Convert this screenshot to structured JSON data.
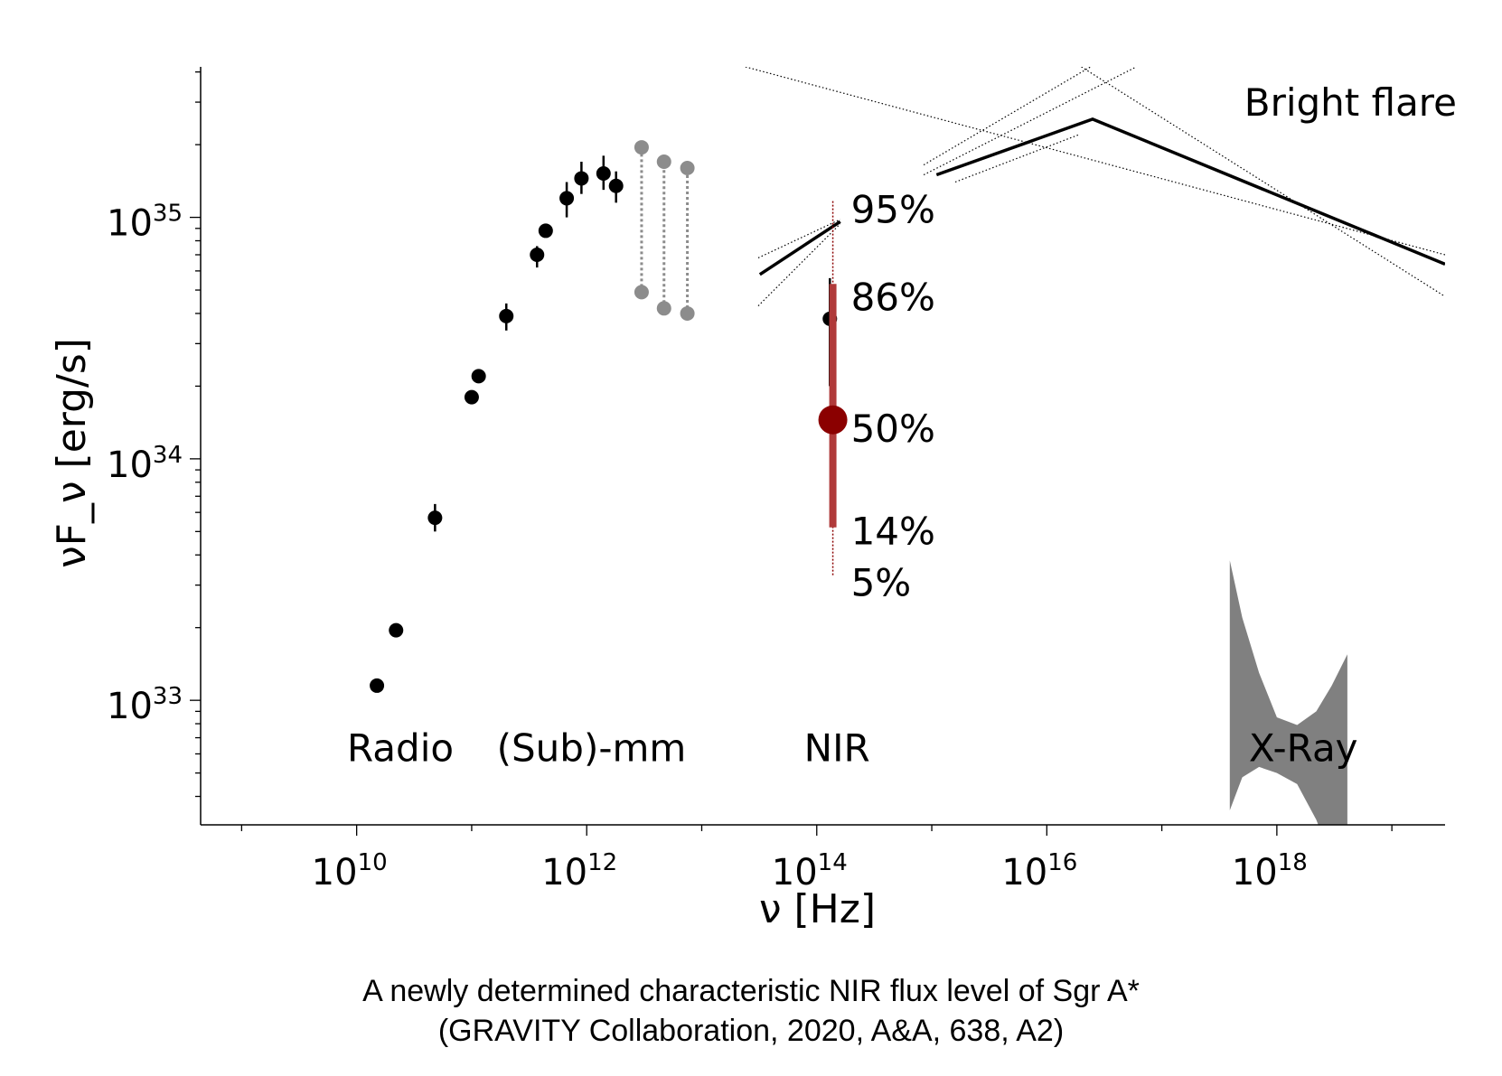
{
  "chart_data": {
    "type": "scatter",
    "title": "",
    "xlabel": "ν [Hz]",
    "ylabel": "νF_ν [erg/s]",
    "xscale": "log",
    "yscale": "log",
    "xlim": [
      440000000.0,
      2.9e+19
    ],
    "ylim": [
      3.05e+32,
      4.2e+35
    ],
    "x_ticks": [
      {
        "value": 10000000000.0,
        "base": "10",
        "exp": "10"
      },
      {
        "value": 1000000000000.0,
        "base": "10",
        "exp": "12"
      },
      {
        "value": 100000000000000.0,
        "base": "10",
        "exp": "14"
      },
      {
        "value": 1e+16,
        "base": "10",
        "exp": "16"
      },
      {
        "value": 1e+18,
        "base": "10",
        "exp": "18"
      }
    ],
    "y_ticks": [
      {
        "value": 1e+33,
        "base": "10",
        "exp": "33"
      },
      {
        "value": 1e+34,
        "base": "10",
        "exp": "34"
      },
      {
        "value": 1e+35,
        "base": "10",
        "exp": "35"
      }
    ],
    "grid": false,
    "band_labels": [
      {
        "text": "Radio",
        "x": 24000000000.0
      },
      {
        "text": "(Sub)-mm",
        "x": 1100000000000.0
      },
      {
        "text": "NIR",
        "x": 150000000000000.0
      },
      {
        "text": "X-Ray",
        "x": 1.7e+18
      }
    ],
    "band_label_y": 5.6e+32,
    "quiescent_points": [
      {
        "x": 15000000000.0,
        "y": 1.15e+33,
        "lo": 1.15e+33,
        "hi": 1.15e+33
      },
      {
        "x": 22000000000.0,
        "y": 1.95e+33,
        "lo": 1.95e+33,
        "hi": 1.95e+33
      },
      {
        "x": 48000000000.0,
        "y": 5.7e+33,
        "lo": 5e+33,
        "hi": 6.5e+33
      },
      {
        "x": 100000000000.0,
        "y": 1.8e+34,
        "lo": 1.75e+34,
        "hi": 1.85e+34
      },
      {
        "x": 115000000000.0,
        "y": 2.2e+34,
        "lo": 2.2e+34,
        "hi": 2.2e+34
      },
      {
        "x": 200000000000.0,
        "y": 3.9e+34,
        "lo": 3.4e+34,
        "hi": 4.4e+34
      },
      {
        "x": 370000000000.0,
        "y": 7e+34,
        "lo": 6.2e+34,
        "hi": 7.6e+34
      },
      {
        "x": 440000000000.0,
        "y": 8.8e+34,
        "lo": 8.6e+34,
        "hi": 9e+34
      },
      {
        "x": 670000000000.0,
        "y": 1.2e+35,
        "lo": 1e+35,
        "hi": 1.4e+35
      },
      {
        "x": 900000000000.0,
        "y": 1.45e+35,
        "lo": 1.25e+35,
        "hi": 1.7e+35
      },
      {
        "x": 1400000000000.0,
        "y": 1.52e+35,
        "lo": 1.3e+35,
        "hi": 1.8e+35
      },
      {
        "x": 1800000000000.0,
        "y": 1.35e+35,
        "lo": 1.15e+35,
        "hi": 1.55e+35
      }
    ],
    "submm_ranges": [
      {
        "x": 3000000000000.0,
        "lo": 4.9e+34,
        "hi": 1.95e+35
      },
      {
        "x": 4700000000000.0,
        "lo": 4.2e+34,
        "hi": 1.7e+35
      },
      {
        "x": 7500000000000.0,
        "lo": 4e+34,
        "hi": 1.6e+35
      }
    ],
    "nir_point": {
      "x": 130000000000000.0,
      "y": 3.8e+34,
      "lo": 2e+34,
      "hi": 5.6e+34
    },
    "flux_distribution": {
      "x": 138000000000000.0,
      "median": 1.45e+34,
      "p5": 3.3e+33,
      "p14": 5.2e+33,
      "p86": 5.3e+34,
      "p95": 1.18e+35
    },
    "percent_labels": [
      {
        "text": "95%",
        "y": 1.07e+35
      },
      {
        "text": "86%",
        "y": 4.65e+34
      },
      {
        "text": "50%",
        "y": 1.33e+34
      },
      {
        "text": "14%",
        "y": 5e+33
      },
      {
        "text": "5%",
        "y": 3.05e+33
      }
    ],
    "bright_flare_label": "Bright flare",
    "bright_flare": {
      "nir_line": [
        [
          32000000000000.0,
          5.8e+34
        ],
        [
          160000000000000.0,
          9.6e+34
        ]
      ],
      "nir_cone": [
        [
          [
            31000000000000.0,
            6.8e+34
          ],
          [
            160000000000000.0,
            9.8e+34
          ]
        ],
        [
          [
            31000000000000.0,
            4.3e+34
          ],
          [
            160000000000000.0,
            9.4e+34
          ]
        ]
      ],
      "main_line": [
        [
          1100000000000000.0,
          1.5e+35
        ],
        [
          2.5e+16,
          2.55e+35
        ],
        [
          2.9e+19,
          6.4e+34
        ]
      ],
      "dotted_lines": [
        [
          [
            24000000000000.0,
            4.2e+35
          ],
          [
            2.9e+19,
            7e+34
          ]
        ],
        [
          [
            850000000000000.0,
            1.65e+35
          ],
          [
            2.4e+16,
            4.2e+35
          ]
        ],
        [
          [
            850000000000000.0,
            1.5e+35
          ],
          [
            6e+16,
            4.2e+35
          ]
        ],
        [
          [
            1600000000000000.0,
            1.4e+35
          ],
          [
            1.9e+16,
            2.2e+35
          ]
        ],
        [
          [
            2e+16,
            4.2e+35
          ],
          [
            2.9e+19,
            4.7e+34
          ]
        ]
      ]
    },
    "xray_quiescent_band": {
      "x": [
        3.9e+17,
        5e+17,
        7e+17,
        1e+18,
        1.5e+18,
        2.2e+18,
        3e+18,
        4.1e+18
      ],
      "upper": [
        3.8e+33,
        2.2e+33,
        1.3e+33,
        8.5e+32,
        7.9e+32,
        9e+32,
        1.15e+33,
        1.55e+33
      ],
      "lower": [
        3.5e+32,
        4.8e+32,
        5.3e+32,
        5e+32,
        4.5e+32,
        3.2e+32,
        2.2e+32,
        1e+32
      ]
    }
  },
  "caption": {
    "line1": "A newly determined characteristic NIR flux level of Sgr A*",
    "line2": "(GRAVITY Collaboration, 2020, A&A, 638, A2)"
  },
  "colors": {
    "axis": "#000000",
    "quiescent": "#000000",
    "submm_limits": "#8c8c8c",
    "flux_distribution": "#8b0000",
    "flux_bar": "#b03a3a",
    "xray_band": "#808080"
  }
}
